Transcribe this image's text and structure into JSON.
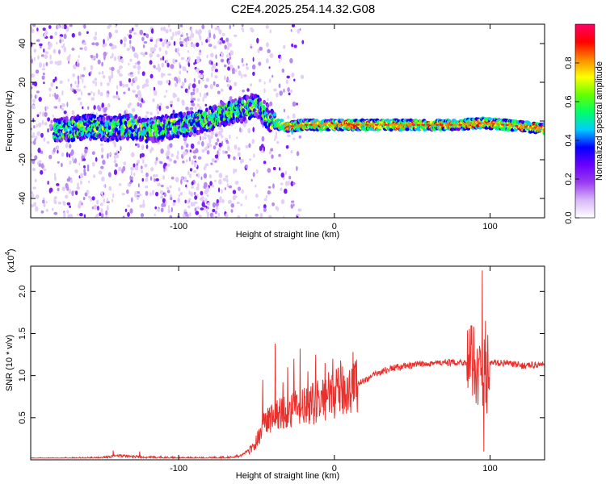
{
  "title": "C2E4.2025.254.14.32.G08",
  "colors": {
    "snr_line": "#e8302c",
    "background": "#ffffff",
    "axis": "#000000"
  },
  "chart_data": [
    {
      "type": "heatmap",
      "name": "spectrogram",
      "xlabel": "Height of straight line (km)",
      "ylabel": "Frequency (Hz)",
      "xlim": [
        -195,
        135
      ],
      "ylim": [
        -50,
        50
      ],
      "xticks": [
        -100,
        0,
        100
      ],
      "xtick_labels": [
        "-100",
        "0",
        "100"
      ],
      "yticks": [
        -40,
        -20,
        0,
        20,
        40
      ],
      "ytick_labels": [
        "-40",
        "-20",
        "0",
        "20",
        "40"
      ],
      "ridge": {
        "x": [
          -175,
          -160,
          -145,
          -130,
          -120,
          -90,
          -80,
          -70,
          -60,
          -50,
          -45,
          -40,
          -35,
          -30,
          -20,
          -10,
          0,
          20,
          40,
          60,
          80,
          95,
          110,
          135
        ],
        "y": [
          -5,
          -3,
          -4,
          -3,
          -5,
          -1,
          1,
          4,
          6,
          8,
          4,
          0,
          -2,
          -3,
          -2,
          -2,
          -2,
          -2,
          -2,
          -2,
          -2,
          -1,
          -2,
          -4
        ]
      },
      "colorbar": {
        "label": "Normalized spectral amplitude",
        "range": [
          0,
          1
        ],
        "ticks": [
          0.0,
          0.2,
          0.4,
          0.6,
          0.8
        ],
        "tick_labels": [
          "0.0",
          "0.2",
          "0.4",
          "0.6",
          "0.8"
        ],
        "colormap": [
          "#ffffff",
          "#d8b8f8",
          "#9a3cf0",
          "#6a00ff",
          "#0000ff",
          "#00ccff",
          "#00ff66",
          "#66ff00",
          "#ffff00",
          "#ff8800",
          "#ff0000",
          "#ff0066"
        ]
      }
    },
    {
      "type": "line",
      "name": "snr",
      "xlabel": "Height of straight line (km)",
      "ylabel": "SNR (10 * v/v)",
      "multiplier_label": "(x10",
      "multiplier_exp": "4",
      "multiplier_close": ")",
      "xlim": [
        -195,
        135
      ],
      "ylim": [
        0,
        2.3
      ],
      "xticks": [
        -100,
        0,
        100
      ],
      "xtick_labels": [
        "-100",
        "0",
        "100"
      ],
      "yticks": [
        0.5,
        1.0,
        1.5,
        2.0
      ],
      "ytick_labels": [
        "0.5",
        "1.0",
        "1.5",
        "2.0"
      ],
      "envelope": {
        "x": [
          -195,
          -150,
          -140,
          -120,
          -100,
          -80,
          -65,
          -60,
          -52,
          -48,
          -45,
          -40,
          -35,
          -30,
          -25,
          -20,
          -15,
          -10,
          -5,
          0,
          10,
          20,
          30,
          40,
          50,
          60,
          70,
          80,
          90,
          93,
          95,
          97,
          100,
          110,
          120,
          135
        ],
        "y": [
          0.01,
          0.02,
          0.05,
          0.03,
          0.02,
          0.02,
          0.03,
          0.05,
          0.15,
          0.3,
          0.45,
          0.5,
          0.55,
          0.58,
          0.6,
          0.62,
          0.65,
          0.7,
          0.75,
          0.78,
          0.85,
          0.95,
          1.05,
          1.1,
          1.12,
          1.15,
          1.15,
          1.16,
          1.15,
          1.05,
          0.9,
          1.1,
          1.15,
          1.15,
          1.12,
          1.13
        ]
      },
      "spikes": {
        "x": [
          -142,
          -125,
          -46,
          -38,
          -33,
          -30,
          -26,
          -22,
          -17,
          -12,
          -6,
          -1,
          4,
          12,
          95,
          96,
          97,
          98
        ],
        "y": [
          0.11,
          0.1,
          0.95,
          1.38,
          0.92,
          1.1,
          1.2,
          1.32,
          1.05,
          1.25,
          1.15,
          1.2,
          1.18,
          1.28,
          2.25,
          0.1,
          1.65,
          0.55
        ]
      }
    }
  ]
}
